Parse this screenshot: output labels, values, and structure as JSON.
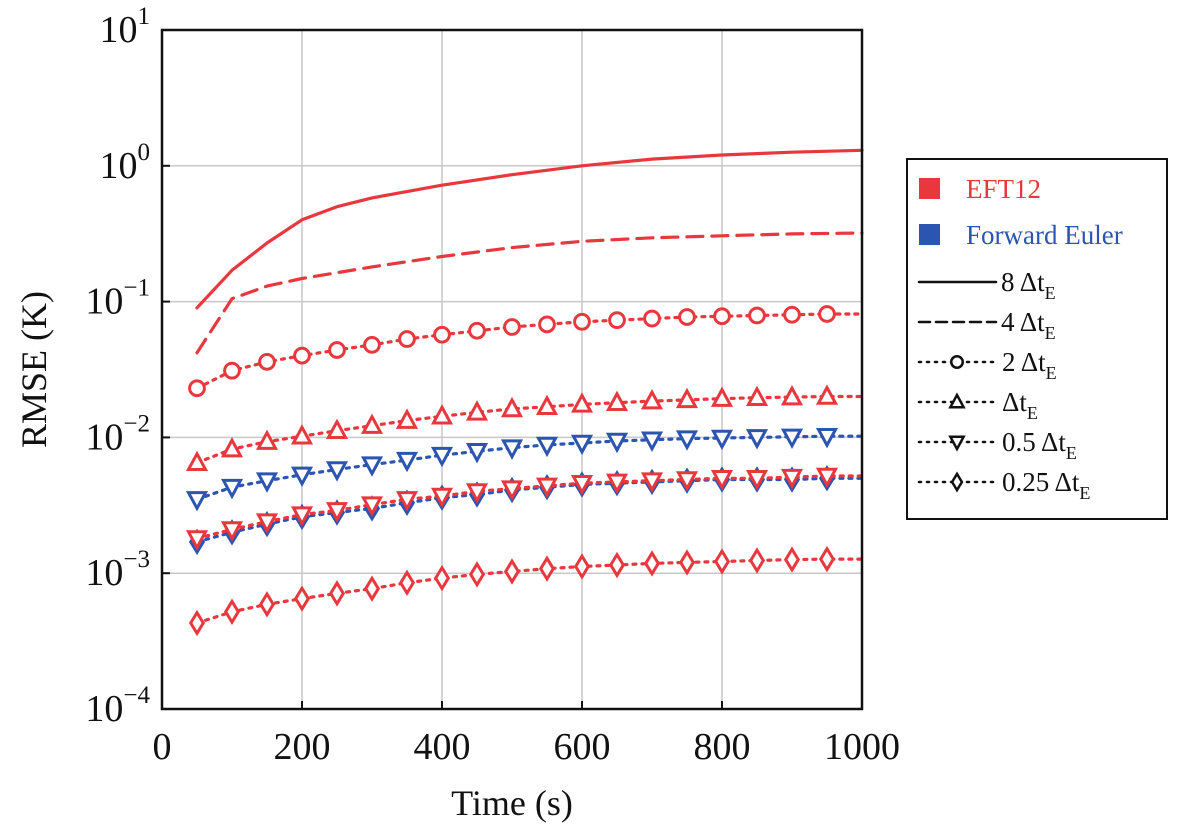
{
  "chart_data": {
    "type": "line",
    "xlabel": "Time (s)",
    "ylabel": "RMSE (K)",
    "xlim": [
      0,
      1000
    ],
    "ylim": [
      0.0001,
      10
    ],
    "yscale": "log",
    "grid": true,
    "legend_placement": "right-outside",
    "x_ticks": [
      "0",
      "200",
      "400",
      "600",
      "800",
      "1000"
    ],
    "y_ticks": [
      {
        "base": "10",
        "exp": "1",
        "value": 10
      },
      {
        "base": "10",
        "exp": "0",
        "value": 1
      },
      {
        "base": "10",
        "exp": "−1",
        "value": 0.1
      },
      {
        "base": "10",
        "exp": "−2",
        "value": 0.01
      },
      {
        "base": "10",
        "exp": "−3",
        "value": 0.001
      },
      {
        "base": "10",
        "exp": "−4",
        "value": 0.0001
      }
    ],
    "method_legend": [
      {
        "label": "EFT12",
        "color": "#e8383d"
      },
      {
        "label": "Forward Euler",
        "color": "#2b55b0"
      }
    ],
    "step_legend": [
      {
        "style": "solid",
        "marker": "none",
        "main": "8 Δt",
        "sub": "E"
      },
      {
        "style": "dashed",
        "marker": "none",
        "main": "4 Δt",
        "sub": "E"
      },
      {
        "style": "dotted",
        "marker": "circle",
        "main": "2 Δt",
        "sub": "E"
      },
      {
        "style": "dotted",
        "marker": "triangle-up",
        "main": "Δt",
        "sub": "E"
      },
      {
        "style": "dotted",
        "marker": "triangle-down",
        "main": "0.5 Δt",
        "sub": "E"
      },
      {
        "style": "dotted",
        "marker": "diamond",
        "main": "0.25 Δt",
        "sub": "E"
      }
    ],
    "series": [
      {
        "method": "EFT12",
        "step": "8 ΔtE",
        "color": "#e8383d",
        "style": "solid",
        "marker": "none",
        "x": [
          50,
          100,
          150,
          200,
          250,
          300,
          400,
          500,
          600,
          700,
          800,
          900,
          1000
        ],
        "y": [
          0.09,
          0.17,
          0.27,
          0.4,
          0.5,
          0.58,
          0.72,
          0.86,
          1.0,
          1.12,
          1.2,
          1.26,
          1.3
        ]
      },
      {
        "method": "EFT12",
        "step": "4 ΔtE",
        "color": "#e8383d",
        "style": "dashed",
        "marker": "none",
        "x": [
          50,
          100,
          150,
          200,
          300,
          400,
          500,
          600,
          700,
          800,
          900,
          1000
        ],
        "y": [
          0.042,
          0.105,
          0.13,
          0.148,
          0.18,
          0.215,
          0.25,
          0.278,
          0.295,
          0.305,
          0.315,
          0.32
        ]
      },
      {
        "method": "EFT12",
        "step": "2 ΔtE",
        "color": "#e8383d",
        "style": "dotted",
        "marker": "circle",
        "x": [
          50,
          100,
          150,
          200,
          250,
          300,
          350,
          400,
          450,
          500,
          550,
          600,
          650,
          700,
          750,
          800,
          850,
          900,
          950
        ],
        "y": [
          0.023,
          0.031,
          0.036,
          0.04,
          0.044,
          0.048,
          0.053,
          0.057,
          0.061,
          0.065,
          0.068,
          0.071,
          0.073,
          0.075,
          0.077,
          0.078,
          0.079,
          0.08,
          0.081
        ]
      },
      {
        "method": "EFT12",
        "step": "ΔtE",
        "color": "#e8383d",
        "style": "dotted",
        "marker": "triangle-up",
        "x": [
          50,
          100,
          150,
          200,
          250,
          300,
          350,
          400,
          450,
          500,
          550,
          600,
          650,
          700,
          750,
          800,
          850,
          900,
          950
        ],
        "y": [
          0.0065,
          0.0082,
          0.0093,
          0.0102,
          0.0112,
          0.0122,
          0.0133,
          0.0143,
          0.0153,
          0.0162,
          0.0168,
          0.0175,
          0.018,
          0.0185,
          0.0189,
          0.0193,
          0.0196,
          0.0198,
          0.02
        ]
      },
      {
        "method": "Forward Euler",
        "step": "0.5 ΔtE",
        "color": "#2b55b0",
        "style": "dotted",
        "marker": "triangle-down",
        "x": [
          50,
          100,
          150,
          200,
          250,
          300,
          350,
          400,
          450,
          500,
          550,
          600,
          650,
          700,
          750,
          800,
          850,
          900,
          950
        ],
        "y": [
          0.0035,
          0.0043,
          0.0048,
          0.0053,
          0.0058,
          0.0063,
          0.0068,
          0.0074,
          0.0079,
          0.0084,
          0.0088,
          0.0091,
          0.0094,
          0.0096,
          0.0098,
          0.0099,
          0.01,
          0.0101,
          0.0102
        ]
      },
      {
        "method": "Forward Euler",
        "step": "0.25 ΔtE",
        "color": "#2b55b0",
        "style": "dotted",
        "marker": "diamond",
        "x": [
          50,
          100,
          150,
          200,
          250,
          300,
          350,
          400,
          450,
          500,
          550,
          600,
          650,
          700,
          750,
          800,
          850,
          900,
          950
        ],
        "y": [
          0.0017,
          0.002,
          0.0023,
          0.0026,
          0.0028,
          0.003,
          0.0033,
          0.0036,
          0.0038,
          0.0041,
          0.0043,
          0.0045,
          0.0046,
          0.0047,
          0.0048,
          0.0049,
          0.0049,
          0.0049,
          0.005
        ]
      },
      {
        "method": "EFT12",
        "step": "0.5 ΔtE",
        "color": "#e8383d",
        "style": "dotted",
        "marker": "triangle-down",
        "x": [
          50,
          100,
          150,
          200,
          250,
          300,
          350,
          400,
          450,
          500,
          550,
          600,
          650,
          700,
          750,
          800,
          850,
          900,
          950
        ],
        "y": [
          0.0018,
          0.0021,
          0.0024,
          0.0027,
          0.0029,
          0.0032,
          0.0035,
          0.0037,
          0.004,
          0.0042,
          0.0044,
          0.0046,
          0.0047,
          0.0048,
          0.0049,
          0.005,
          0.005,
          0.0051,
          0.0052
        ]
      },
      {
        "method": "EFT12",
        "step": "0.25 ΔtE",
        "color": "#e8383d",
        "style": "dotted",
        "marker": "diamond",
        "x": [
          50,
          100,
          150,
          200,
          250,
          300,
          350,
          400,
          450,
          500,
          550,
          600,
          650,
          700,
          750,
          800,
          850,
          900,
          950
        ],
        "y": [
          0.00043,
          0.00052,
          0.00059,
          0.00065,
          0.00071,
          0.00077,
          0.00085,
          0.00092,
          0.00098,
          0.00103,
          0.00108,
          0.00112,
          0.00115,
          0.00118,
          0.0012,
          0.00122,
          0.00124,
          0.00126,
          0.00127
        ]
      }
    ]
  }
}
